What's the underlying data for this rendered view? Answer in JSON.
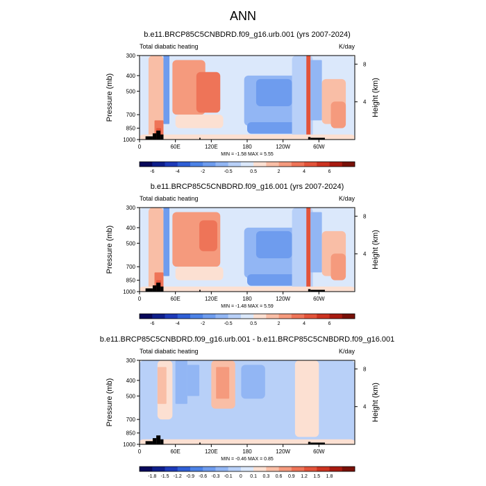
{
  "figure_title": "ANN",
  "colors": {
    "land": "#000000",
    "frame": "#000000"
  },
  "chart_data": [
    {
      "type": "heatmap",
      "title": "b.e11.BRCP85C5CNBDRD.f09_g16.urb.001 (yrs 2007-2024)",
      "left_label": "Total diabatic heating",
      "right_label": "K/day",
      "ylabel": "Pressure (mb)",
      "ylabel_right": "Height (km)",
      "x_ticks": [
        "0",
        "60E",
        "120E",
        "180",
        "120W",
        "60W"
      ],
      "x_tick_values": [
        0,
        60,
        120,
        180,
        240,
        300
      ],
      "xlim": [
        0,
        360
      ],
      "y_ticks": [
        300,
        400,
        500,
        700,
        850,
        1000
      ],
      "ylim": [
        1000,
        300
      ],
      "y_right_ticks": [
        8,
        4
      ],
      "stats": "MIN =  -1.58  MAX =   5.55",
      "colorbar": {
        "labels": [
          "-6",
          "-4",
          "-2",
          "-0.5",
          "0.5",
          "2",
          "4",
          "6"
        ],
        "levels": [
          -8,
          -6,
          -5,
          -4,
          -3,
          -2,
          -1,
          -0.5,
          0,
          0.5,
          1,
          2,
          3,
          4,
          5,
          6,
          8
        ],
        "colors": [
          "#08085a",
          "#0e1e8a",
          "#1d3ab8",
          "#2f5fd6",
          "#4c82e6",
          "#6e9cee",
          "#92b6f4",
          "#b8d0f8",
          "#dbe8fb",
          "#fce0d2",
          "#f9bea6",
          "#f59a7d",
          "#ee7458",
          "#e2533a",
          "#cc3320",
          "#a81a10",
          "#781008"
        ]
      },
      "regions": [
        {
          "x": [
            0,
            360
          ],
          "p": [
            300,
            1000
          ],
          "v": 0.3
        },
        {
          "x": [
            15,
            40
          ],
          "p": [
            300,
            1000
          ],
          "v": 1.5
        },
        {
          "x": [
            40,
            50
          ],
          "p": [
            300,
            800
          ],
          "v": -1.2
        },
        {
          "x": [
            55,
            110
          ],
          "p": [
            320,
            700
          ],
          "v": 2.6
        },
        {
          "x": [
            95,
            135
          ],
          "p": [
            380,
            680
          ],
          "v": 3.3
        },
        {
          "x": [
            110,
            130
          ],
          "p": [
            430,
            560
          ],
          "v": 3.8
        },
        {
          "x": [
            60,
            140
          ],
          "p": [
            700,
            850
          ],
          "v": 0.8
        },
        {
          "x": [
            140,
            175
          ],
          "p": [
            350,
            700
          ],
          "v": 0.3
        },
        {
          "x": [
            175,
            280
          ],
          "p": [
            400,
            820
          ],
          "v": -0.6
        },
        {
          "x": [
            195,
            255
          ],
          "p": [
            420,
            620
          ],
          "v": -1.4
        },
        {
          "x": [
            180,
            270
          ],
          "p": [
            780,
            920
          ],
          "v": -1.2
        },
        {
          "x": [
            255,
            290
          ],
          "p": [
            300,
            1000
          ],
          "v": -0.2
        },
        {
          "x": [
            279,
            286
          ],
          "p": [
            300,
            1000
          ],
          "v": 4.8
        },
        {
          "x": [
            286,
            305
          ],
          "p": [
            320,
            760
          ],
          "v": -0.6
        },
        {
          "x": [
            305,
            345
          ],
          "p": [
            420,
            800
          ],
          "v": 1.5
        },
        {
          "x": [
            320,
            345
          ],
          "p": [
            580,
            850
          ],
          "v": 2.4
        },
        {
          "x": [
            0,
            360
          ],
          "p": [
            930,
            1000
          ],
          "v": 0.6
        },
        {
          "x": [
            25,
            40
          ],
          "p": [
            760,
            1000
          ],
          "v": 3.2
        },
        {
          "x": [
            28,
            36
          ],
          "p": [
            850,
            1000
          ],
          "v": 4.5
        }
      ],
      "land": [
        {
          "x": [
            10,
            22
          ],
          "p": [
            955,
            1000
          ]
        },
        {
          "x": [
            22,
            28
          ],
          "p": [
            915,
            1000
          ]
        },
        {
          "x": [
            28,
            35
          ],
          "p": [
            880,
            1000
          ]
        },
        {
          "x": [
            35,
            40
          ],
          "p": [
            930,
            1000
          ]
        },
        {
          "x": [
            100,
            102
          ],
          "p": [
            975,
            1000
          ]
        },
        {
          "x": [
            282,
            286
          ],
          "p": [
            965,
            1000
          ]
        },
        {
          "x": [
            286,
            310
          ],
          "p": [
            975,
            1000
          ]
        }
      ]
    },
    {
      "type": "heatmap",
      "title": "b.e11.BRCP85C5CNBDRD.f09_g16.001 (yrs 2007-2024)",
      "left_label": "Total diabatic heating",
      "right_label": "K/day",
      "ylabel": "Pressure (mb)",
      "ylabel_right": "Height (km)",
      "x_ticks": [
        "0",
        "60E",
        "120E",
        "180",
        "120W",
        "60W"
      ],
      "x_tick_values": [
        0,
        60,
        120,
        180,
        240,
        300
      ],
      "xlim": [
        0,
        360
      ],
      "y_ticks": [
        300,
        400,
        500,
        700,
        850,
        1000
      ],
      "ylim": [
        1000,
        300
      ],
      "y_right_ticks": [
        8,
        4
      ],
      "stats": "MIN =  -1.48  MAX =   5.59",
      "colorbar": {
        "labels": [
          "-6",
          "-4",
          "-2",
          "-0.5",
          "0.5",
          "2",
          "4",
          "6"
        ],
        "levels": [
          -8,
          -6,
          -5,
          -4,
          -3,
          -2,
          -1,
          -0.5,
          0,
          0.5,
          1,
          2,
          3,
          4,
          5,
          6,
          8
        ],
        "colors": [
          "#08085a",
          "#0e1e8a",
          "#1d3ab8",
          "#2f5fd6",
          "#4c82e6",
          "#6e9cee",
          "#92b6f4",
          "#b8d0f8",
          "#dbe8fb",
          "#fce0d2",
          "#f9bea6",
          "#f59a7d",
          "#ee7458",
          "#e2533a",
          "#cc3320",
          "#a81a10",
          "#781008"
        ]
      },
      "regions": [
        {
          "x": [
            0,
            360
          ],
          "p": [
            300,
            1000
          ],
          "v": 0.3
        },
        {
          "x": [
            15,
            40
          ],
          "p": [
            300,
            1000
          ],
          "v": 1.5
        },
        {
          "x": [
            40,
            50
          ],
          "p": [
            300,
            800
          ],
          "v": -1.2
        },
        {
          "x": [
            55,
            135
          ],
          "p": [
            320,
            700
          ],
          "v": 2.6
        },
        {
          "x": [
            100,
            130
          ],
          "p": [
            360,
            560
          ],
          "v": 3.3
        },
        {
          "x": [
            60,
            140
          ],
          "p": [
            700,
            850
          ],
          "v": 0.8
        },
        {
          "x": [
            140,
            175
          ],
          "p": [
            350,
            700
          ],
          "v": 0.3
        },
        {
          "x": [
            175,
            280
          ],
          "p": [
            400,
            820
          ],
          "v": -0.6
        },
        {
          "x": [
            195,
            255
          ],
          "p": [
            420,
            620
          ],
          "v": -1.4
        },
        {
          "x": [
            180,
            270
          ],
          "p": [
            780,
            920
          ],
          "v": -1.2
        },
        {
          "x": [
            255,
            290
          ],
          "p": [
            300,
            1000
          ],
          "v": -0.2
        },
        {
          "x": [
            279,
            286
          ],
          "p": [
            300,
            1000
          ],
          "v": 4.8
        },
        {
          "x": [
            286,
            305
          ],
          "p": [
            320,
            760
          ],
          "v": -0.6
        },
        {
          "x": [
            305,
            345
          ],
          "p": [
            420,
            800
          ],
          "v": 1.5
        },
        {
          "x": [
            320,
            345
          ],
          "p": [
            580,
            850
          ],
          "v": 2.4
        },
        {
          "x": [
            0,
            360
          ],
          "p": [
            930,
            1000
          ],
          "v": 0.6
        },
        {
          "x": [
            25,
            40
          ],
          "p": [
            760,
            1000
          ],
          "v": 3.2
        },
        {
          "x": [
            28,
            36
          ],
          "p": [
            850,
            1000
          ],
          "v": 4.5
        }
      ],
      "land": [
        {
          "x": [
            10,
            22
          ],
          "p": [
            955,
            1000
          ]
        },
        {
          "x": [
            22,
            28
          ],
          "p": [
            915,
            1000
          ]
        },
        {
          "x": [
            28,
            35
          ],
          "p": [
            880,
            1000
          ]
        },
        {
          "x": [
            35,
            40
          ],
          "p": [
            930,
            1000
          ]
        },
        {
          "x": [
            100,
            102
          ],
          "p": [
            975,
            1000
          ]
        },
        {
          "x": [
            282,
            286
          ],
          "p": [
            965,
            1000
          ]
        },
        {
          "x": [
            286,
            310
          ],
          "p": [
            975,
            1000
          ]
        }
      ]
    },
    {
      "type": "heatmap",
      "title": "b.e11.BRCP85C5CNBDRD.f09_g16.urb.001 - b.e11.BRCP85C5CNBDRD.f09_g16.001",
      "left_label": "Total diabatic heating",
      "right_label": "K/day",
      "ylabel": "Pressure (mb)",
      "ylabel_right": "Height (km)",
      "x_ticks": [
        "0",
        "60E",
        "120E",
        "180",
        "120W",
        "60W"
      ],
      "x_tick_values": [
        0,
        60,
        120,
        180,
        240,
        300
      ],
      "xlim": [
        0,
        360
      ],
      "y_ticks": [
        300,
        400,
        500,
        700,
        850,
        1000
      ],
      "ylim": [
        1000,
        300
      ],
      "y_right_ticks": [
        8,
        4
      ],
      "stats": "MIN =  -0.46  MAX =   0.85",
      "colorbar": {
        "labels": [
          "-1.8",
          "-1.5",
          "-1.2",
          "-0.9",
          "-0.6",
          "-0.3",
          "-0.1",
          "0",
          "0.1",
          "0.3",
          "0.6",
          "0.9",
          "1.2",
          "1.5",
          "1.8"
        ],
        "levels": [
          -2.1,
          -1.8,
          -1.5,
          -1.2,
          -0.9,
          -0.6,
          -0.3,
          -0.1,
          0,
          0.1,
          0.3,
          0.6,
          0.9,
          1.2,
          1.5,
          1.8,
          2.1
        ],
        "colors": [
          "#08085a",
          "#0e1e8a",
          "#1d3ab8",
          "#2f5fd6",
          "#4c82e6",
          "#6e9cee",
          "#92b6f4",
          "#b8d0f8",
          "#dbe8fb",
          "#fce0d2",
          "#f9bea6",
          "#f59a7d",
          "#ee7458",
          "#e2533a",
          "#cc3320",
          "#a81a10",
          "#781008"
        ]
      },
      "regions": [
        {
          "x": [
            0,
            360
          ],
          "p": [
            300,
            1000
          ],
          "v": -0.05
        },
        {
          "x": [
            30,
            55
          ],
          "p": [
            300,
            700
          ],
          "v": 0.25
        },
        {
          "x": [
            30,
            45
          ],
          "p": [
            330,
            560
          ],
          "v": 0.5
        },
        {
          "x": [
            60,
            80
          ],
          "p": [
            300,
            560
          ],
          "v": -0.2
        },
        {
          "x": [
            80,
            100
          ],
          "p": [
            320,
            500
          ],
          "v": -0.2
        },
        {
          "x": [
            120,
            160
          ],
          "p": [
            300,
            600
          ],
          "v": 0.3
        },
        {
          "x": [
            128,
            150
          ],
          "p": [
            330,
            520
          ],
          "v": 0.6
        },
        {
          "x": [
            170,
            210
          ],
          "p": [
            320,
            520
          ],
          "v": -0.2
        },
        {
          "x": [
            260,
            300
          ],
          "p": [
            300,
            900
          ],
          "v": 0.15
        },
        {
          "x": [
            0,
            360
          ],
          "p": [
            930,
            1000
          ],
          "v": 0.1
        }
      ],
      "land": [
        {
          "x": [
            10,
            22
          ],
          "p": [
            955,
            1000
          ]
        },
        {
          "x": [
            22,
            28
          ],
          "p": [
            915,
            1000
          ]
        },
        {
          "x": [
            28,
            35
          ],
          "p": [
            880,
            1000
          ]
        },
        {
          "x": [
            35,
            40
          ],
          "p": [
            930,
            1000
          ]
        },
        {
          "x": [
            100,
            102
          ],
          "p": [
            975,
            1000
          ]
        },
        {
          "x": [
            282,
            286
          ],
          "p": [
            965,
            1000
          ]
        },
        {
          "x": [
            286,
            310
          ],
          "p": [
            975,
            1000
          ]
        }
      ]
    }
  ]
}
